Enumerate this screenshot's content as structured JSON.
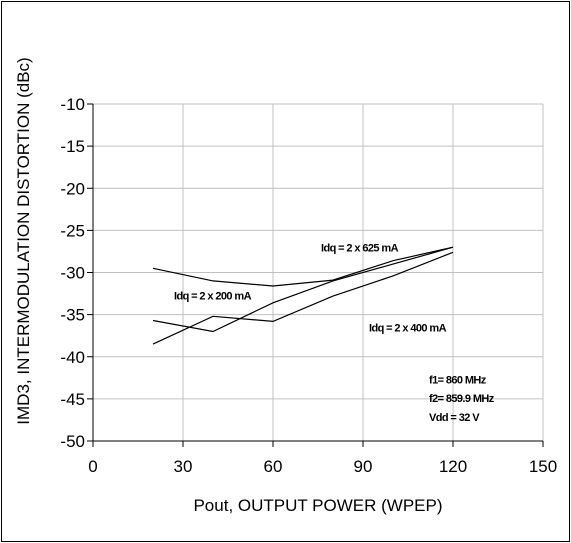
{
  "chart_data": {
    "type": "line",
    "title": "",
    "xlabel": "Pout, OUTPUT POWER (WPEP)",
    "ylabel": "IMD3, INTERMODULATION DISTORTION (dBc)",
    "xlim": [
      0,
      150
    ],
    "ylim": [
      -50,
      -10
    ],
    "x_ticks": [
      0,
      30,
      60,
      90,
      120,
      150
    ],
    "y_ticks": [
      -10,
      -15,
      -20,
      -25,
      -30,
      -35,
      -40,
      -45,
      -50
    ],
    "x_tick_labels": [
      "0",
      "30",
      "60",
      "90",
      "120",
      "150"
    ],
    "y_tick_labels": [
      "-10",
      "-15",
      "-20",
      "-25",
      "-30",
      "-35",
      "-40",
      "-45",
      "-50"
    ],
    "grid": true,
    "legend": "none",
    "series": [
      {
        "name": "Idq = 2 x 625 mA",
        "x": [
          20,
          40,
          60,
          80,
          100,
          120
        ],
        "y": [
          -29.5,
          -31.0,
          -31.6,
          -30.9,
          -28.6,
          -27.0
        ]
      },
      {
        "name": "Idq = 2 x 200 mA",
        "x": [
          20,
          40,
          60,
          80,
          100,
          120
        ],
        "y": [
          -35.7,
          -37.0,
          -33.6,
          -31.0,
          -29.0,
          -27.0
        ]
      },
      {
        "name": "Idq = 2 x 400 mA",
        "x": [
          20,
          40,
          60,
          80,
          100,
          120
        ],
        "y": [
          -38.5,
          -35.2,
          -35.8,
          -32.8,
          -30.4,
          -27.6
        ]
      }
    ],
    "annotations": [
      {
        "text": "Idq = 2 x 625 mA",
        "x": 76,
        "y": -27.5
      },
      {
        "text": "Idq = 2 x 200 mA",
        "x": 27,
        "y": -33.2
      },
      {
        "text": "Idq = 2 x 400 mA",
        "x": 92,
        "y": -37.0
      },
      {
        "text": "f1= 860 MHz",
        "x": 112,
        "y": -43.2
      },
      {
        "text": "f2= 859.9 MHz",
        "x": 112,
        "y": -45.4
      },
      {
        "text": "Vdd = 32 V",
        "x": 112,
        "y": -47.6
      }
    ],
    "colors": {
      "line": "#000000",
      "grid": "#c0c0c0",
      "axis": "#000000"
    }
  }
}
